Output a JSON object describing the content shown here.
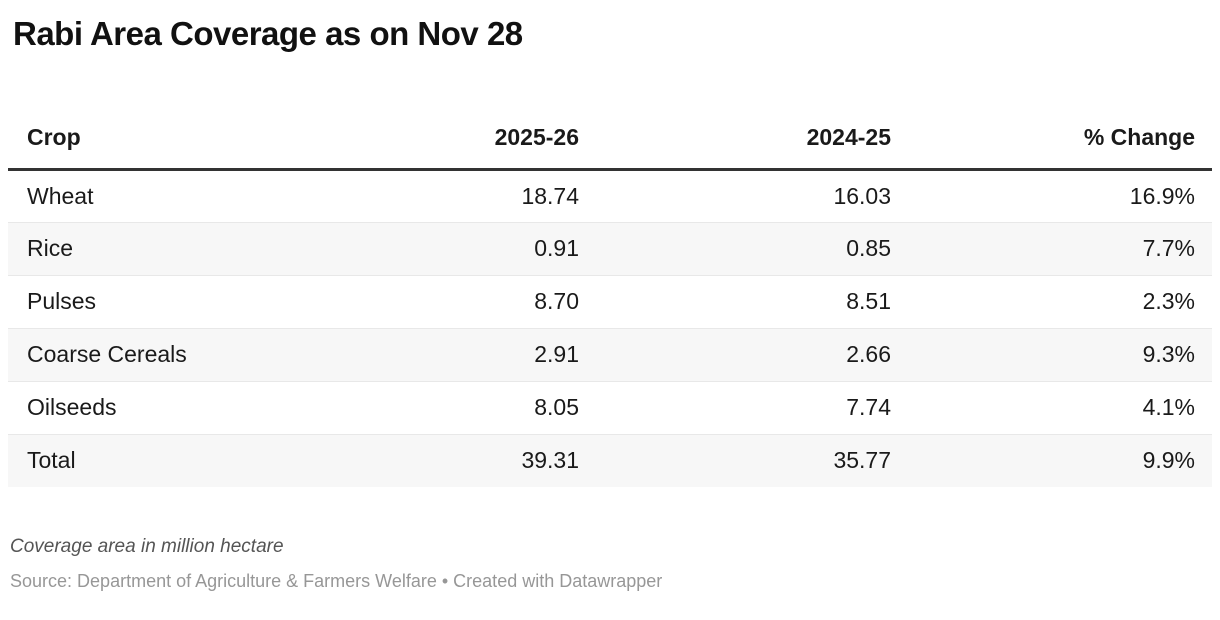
{
  "header": {
    "title": "Rabi Area Coverage as on Nov 28"
  },
  "table": {
    "columns": [
      "Crop",
      "2025-26",
      "2024-25",
      "% Change"
    ],
    "rows": [
      {
        "crop": "Wheat",
        "v2025": "18.74",
        "v2024": "16.03",
        "change": "16.9%"
      },
      {
        "crop": "Rice",
        "v2025": "0.91",
        "v2024": "0.85",
        "change": "7.7%"
      },
      {
        "crop": "Pulses",
        "v2025": "8.70",
        "v2024": "8.51",
        "change": "2.3%"
      },
      {
        "crop": "Coarse Cereals",
        "v2025": "2.91",
        "v2024": "2.66",
        "change": "9.3%"
      },
      {
        "crop": "Oilseeds",
        "v2025": "8.05",
        "v2024": "7.74",
        "change": "4.1%"
      },
      {
        "crop": "Total",
        "v2025": "39.31",
        "v2024": "35.77",
        "change": "9.9%"
      }
    ]
  },
  "footer": {
    "notes": "Coverage area in million hectare",
    "source_prefix": "Source: ",
    "source_name": "Department of Agriculture & Farmers Welfare",
    "separator": " • ",
    "credit": "Created with Datawrapper"
  },
  "colors": {
    "header_border": "#333333",
    "row_divider": "#e8e8e8",
    "row_alt_bg": "#f7f7f7",
    "title_text": "#111111",
    "cell_text": "#1a1a1a",
    "notes_text": "#555555",
    "source_text": "#979797"
  },
  "chart_data": {
    "type": "table",
    "title": "Rabi Area Coverage as on Nov 28",
    "columns": [
      "Crop",
      "2025-26",
      "2024-25",
      "% Change"
    ],
    "rows": [
      [
        "Wheat",
        18.74,
        16.03,
        "16.9%"
      ],
      [
        "Rice",
        0.91,
        0.85,
        "7.7%"
      ],
      [
        "Pulses",
        8.7,
        8.51,
        "2.3%"
      ],
      [
        "Coarse Cereals",
        2.91,
        2.66,
        "9.3%"
      ],
      [
        "Oilseeds",
        8.05,
        7.74,
        "4.1%"
      ],
      [
        "Total",
        39.31,
        35.77,
        "9.9%"
      ]
    ],
    "units": "million hectare",
    "notes": "Coverage area in million hectare",
    "source": "Source: Department of Agriculture & Farmers Welfare • Created with Datawrapper",
    "layout_hints": {
      "numeric_columns_alignment": "right",
      "zebra_striping": true,
      "total_row_index": 5
    }
  }
}
